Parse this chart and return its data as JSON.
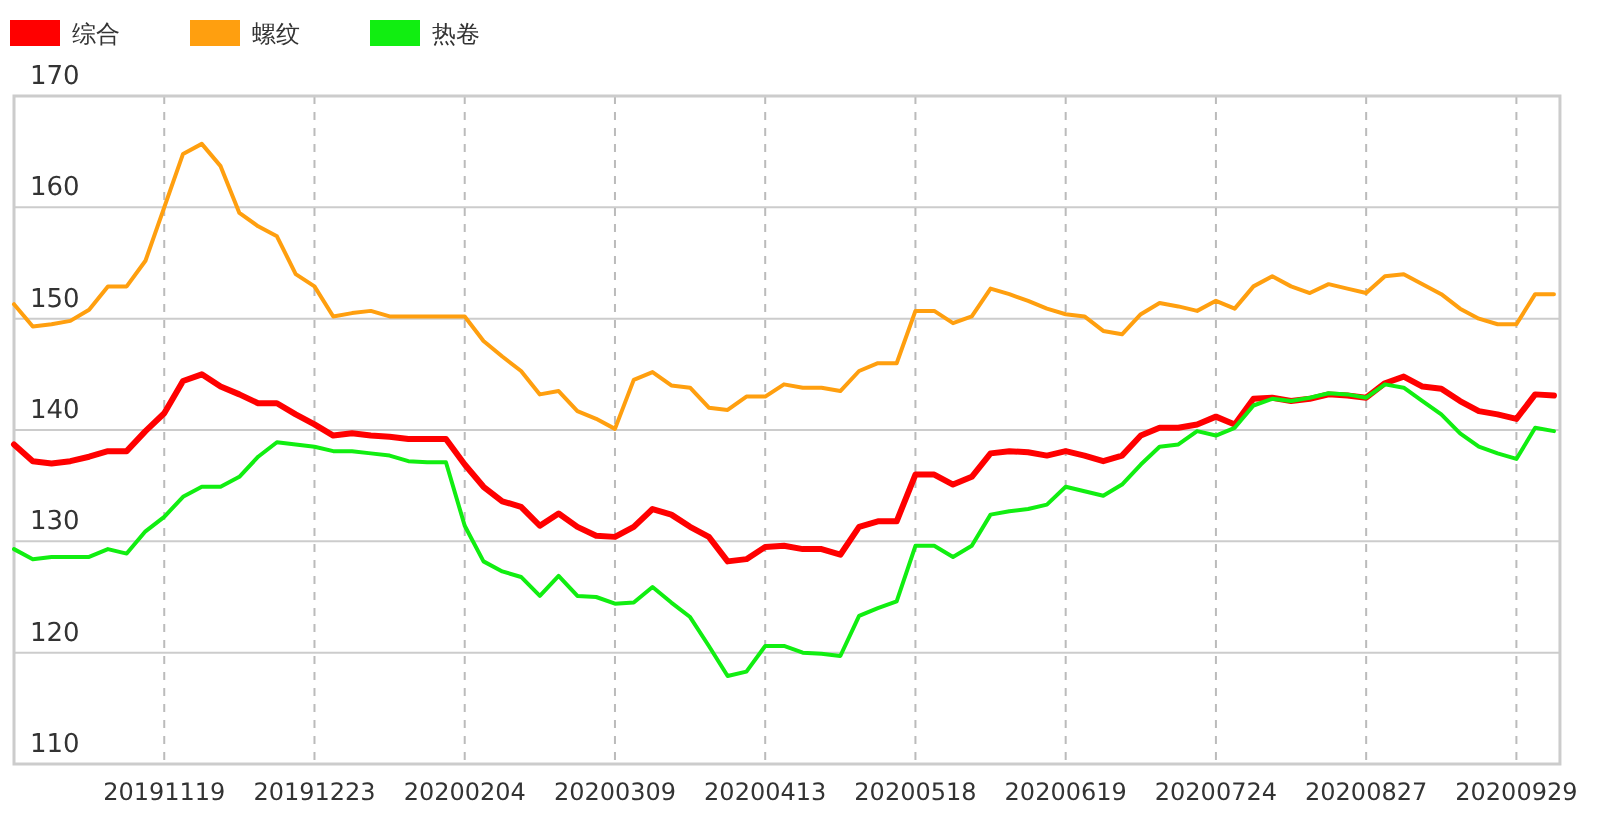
{
  "chart_data": {
    "type": "line",
    "categories": [
      null,
      null,
      null,
      null,
      null,
      null,
      null,
      null,
      "20191119",
      null,
      null,
      null,
      null,
      null,
      null,
      null,
      "20191223",
      null,
      null,
      null,
      null,
      null,
      null,
      null,
      "20200204",
      null,
      null,
      null,
      null,
      null,
      null,
      null,
      "20200309",
      null,
      null,
      null,
      null,
      null,
      null,
      null,
      "20200413",
      null,
      null,
      null,
      null,
      null,
      null,
      null,
      "20200518",
      null,
      null,
      null,
      null,
      null,
      null,
      null,
      "20200619",
      null,
      null,
      null,
      null,
      null,
      null,
      null,
      "20200724",
      null,
      null,
      null,
      null,
      null,
      null,
      null,
      "20200827",
      null,
      null,
      null,
      null,
      null,
      null,
      null,
      "20200929",
      null,
      null
    ],
    "series": [
      {
        "name": "综合",
        "color": "#ff0000",
        "values": [
          138.7,
          137.2,
          137.0,
          137.2,
          137.6,
          138.1,
          138.1,
          139.9,
          141.5,
          144.4,
          145.0,
          143.9,
          143.2,
          142.4,
          142.4,
          141.4,
          140.5,
          139.5,
          139.7,
          139.5,
          139.4,
          139.2,
          139.2,
          139.2,
          136.9,
          134.9,
          133.6,
          133.1,
          131.4,
          132.5,
          131.3,
          130.5,
          130.4,
          131.3,
          132.9,
          132.4,
          131.3,
          130.4,
          128.2,
          128.4,
          129.5,
          129.6,
          129.3,
          129.3,
          128.8,
          131.3,
          131.8,
          131.8,
          136.0,
          136.0,
          135.1,
          135.8,
          137.9,
          138.1,
          138.0,
          137.7,
          138.1,
          137.7,
          137.2,
          137.7,
          139.5,
          140.2,
          140.2,
          140.5,
          141.2,
          140.5,
          142.8,
          142.9,
          142.6,
          142.8,
          143.2,
          143.1,
          142.9,
          144.2,
          144.8,
          143.9,
          143.7,
          142.6,
          141.7,
          141.4,
          141.0,
          143.2,
          143.1
        ]
      },
      {
        "name": "螺纹",
        "color": "#ff9f0f",
        "values": [
          151.3,
          149.3,
          149.5,
          149.8,
          150.8,
          152.9,
          152.9,
          155.2,
          160.0,
          164.8,
          165.7,
          163.7,
          159.5,
          158.3,
          157.4,
          154.0,
          152.9,
          150.2,
          150.5,
          150.7,
          150.2,
          150.2,
          150.2,
          150.2,
          150.2,
          148.0,
          146.6,
          145.3,
          143.2,
          143.5,
          141.7,
          141.0,
          140.1,
          144.5,
          145.2,
          144.0,
          143.8,
          142.0,
          141.8,
          143.0,
          143.0,
          144.1,
          143.8,
          143.8,
          143.5,
          145.3,
          146.0,
          146.0,
          150.7,
          150.7,
          149.6,
          150.2,
          152.7,
          152.2,
          151.6,
          150.9,
          150.4,
          150.2,
          148.9,
          148.6,
          150.4,
          151.4,
          151.1,
          150.7,
          151.6,
          150.9,
          152.9,
          153.8,
          152.9,
          152.3,
          153.1,
          152.7,
          152.3,
          153.8,
          154.0,
          153.1,
          152.2,
          150.9,
          150.0,
          149.5,
          149.5,
          152.2,
          152.2
        ]
      },
      {
        "name": "热卷",
        "color": "#11ee11",
        "values": [
          129.3,
          128.4,
          128.6,
          128.6,
          128.6,
          129.3,
          128.9,
          130.9,
          132.2,
          134.0,
          134.9,
          134.9,
          135.8,
          137.6,
          138.9,
          138.7,
          138.5,
          138.1,
          138.1,
          137.9,
          137.7,
          137.2,
          137.1,
          137.1,
          131.4,
          128.2,
          127.3,
          126.8,
          125.1,
          126.9,
          125.1,
          125.0,
          124.4,
          124.5,
          125.9,
          124.5,
          123.2,
          120.6,
          117.9,
          118.3,
          120.6,
          120.6,
          120.0,
          119.9,
          119.7,
          123.3,
          124.0,
          124.6,
          129.6,
          129.6,
          128.6,
          129.6,
          132.4,
          132.7,
          132.9,
          133.3,
          134.9,
          134.5,
          134.1,
          135.1,
          136.9,
          138.5,
          138.7,
          139.9,
          139.5,
          140.2,
          142.2,
          142.8,
          142.6,
          142.9,
          143.3,
          143.2,
          142.9,
          144.1,
          143.8,
          142.6,
          141.4,
          139.7,
          138.5,
          137.9,
          137.4,
          140.2,
          139.9
        ]
      }
    ],
    "ylim": [
      110,
      170
    ],
    "yticks": [
      110,
      120,
      130,
      140,
      150,
      160,
      170
    ],
    "grid": true,
    "legend": "top left",
    "marker": "none",
    "line_style": "solid"
  }
}
